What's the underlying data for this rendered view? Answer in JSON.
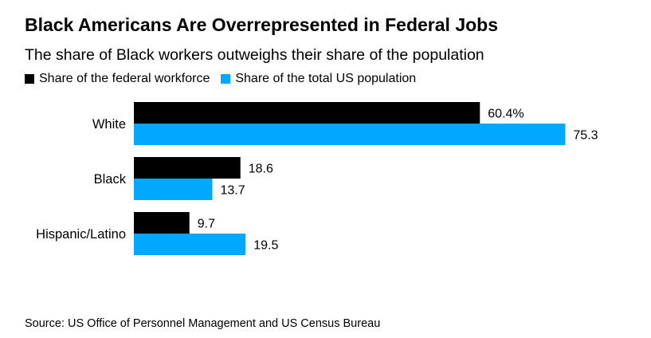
{
  "title": "Black Americans Are Overrepresented in Federal Jobs",
  "subtitle": "The share of Black workers outweighs their share of the population",
  "source": "Source: US Office of Personnel Management and US Census Bureau",
  "colors": {
    "federal": "#000000",
    "population": "#00a8ff"
  },
  "chart_data": {
    "type": "bar",
    "orientation": "horizontal",
    "categories": [
      "White",
      "Black",
      "Hispanic/Latino"
    ],
    "series": [
      {
        "name": "Share of the federal workforce",
        "values": [
          60.4,
          18.6,
          9.7
        ],
        "labels": [
          "60.4%",
          "18.6",
          "9.7"
        ]
      },
      {
        "name": "Share of the total US population",
        "values": [
          75.3,
          13.7,
          19.5
        ],
        "labels": [
          "75.3",
          "13.7",
          "19.5"
        ]
      }
    ],
    "xlim": [
      0,
      100
    ],
    "grid": false,
    "legend_position": "top-left"
  }
}
